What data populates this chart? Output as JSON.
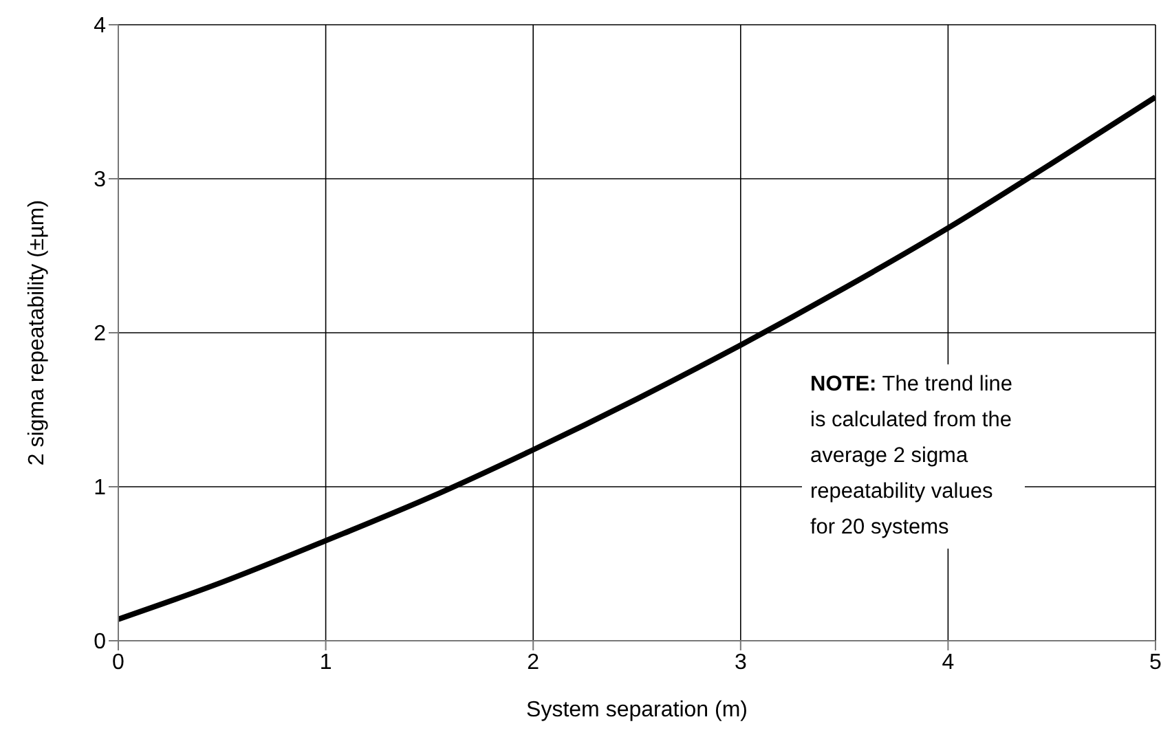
{
  "chart_data": {
    "type": "line",
    "xlabel": "System separation (m)",
    "ylabel": "2 sigma repeatability (±µm)",
    "annotations": [
      "NOTE: The trend line is calculated from the average 2 sigma repeatability values for 20 systems"
    ],
    "xlim": [
      0,
      5
    ],
    "xticks": [
      0,
      1,
      2,
      3,
      4,
      5
    ],
    "ylim": [
      0,
      4
    ],
    "yticks": [
      0,
      1,
      2,
      3,
      4
    ],
    "grid": true,
    "marker": "none",
    "line_style": "solid",
    "series": [
      {
        "color": "#000000",
        "x": [
          0,
          0.5,
          1,
          1.5,
          2,
          2.5,
          3,
          3.5,
          4,
          4.5,
          5
        ],
        "values": [
          0.14,
          0.38,
          0.65,
          0.93,
          1.24,
          1.57,
          1.92,
          2.29,
          2.68,
          3.1,
          3.53
        ]
      }
    ]
  }
}
